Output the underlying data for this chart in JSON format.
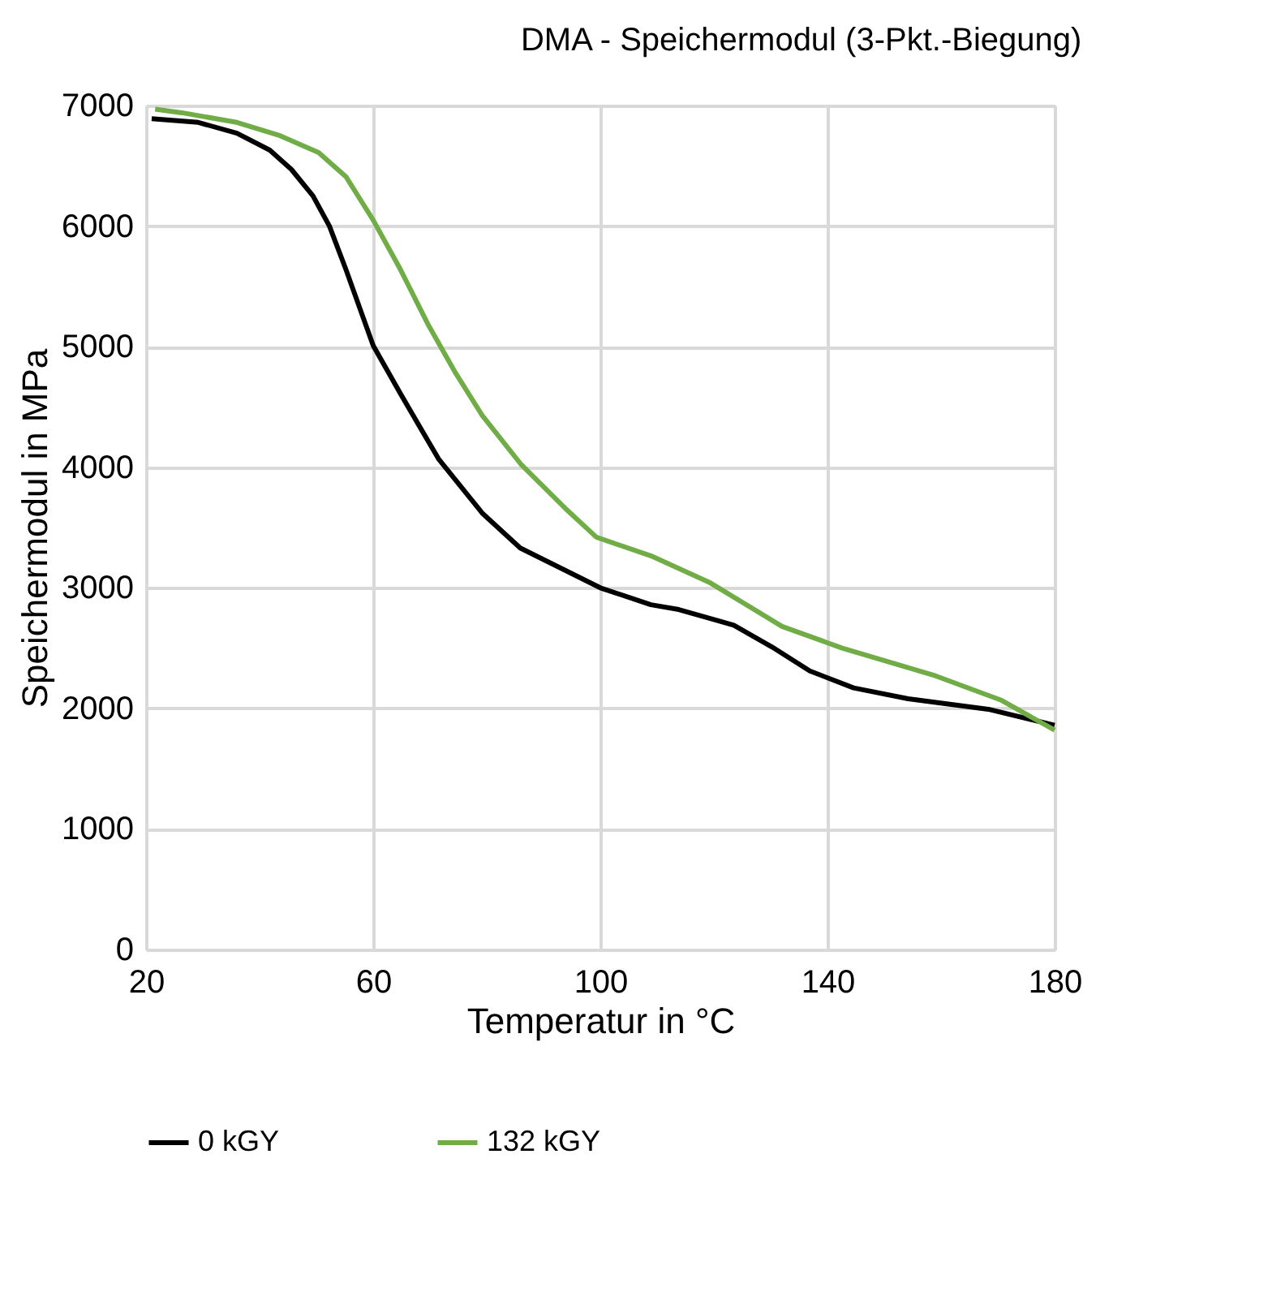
{
  "chart_data": {
    "type": "line",
    "title": "DMA - Speichermodul (3-Pkt.-Biegung)",
    "xlabel": "Temperatur in °C",
    "ylabel": "Speichermodul in MPa",
    "xlim": [
      20,
      180
    ],
    "xticks": [
      20,
      60,
      100,
      140,
      180
    ],
    "ylim": [
      0,
      7000
    ],
    "yticks": [
      0,
      1000,
      2000,
      3000,
      4000,
      5000,
      6000,
      7000
    ],
    "grid": true,
    "legend": "bottom",
    "marker": "none",
    "line_style": "solid",
    "series": [
      {
        "name": "0 kGY",
        "color": "#000000",
        "x": [
          21,
          29.2,
          36,
          41.8,
          45.6,
          49.4,
          52.3,
          55.2,
          60,
          64.8,
          71.5,
          79.2,
          85.9,
          100,
          108.9,
          113.8,
          123.5,
          130.2,
          136.9,
          144.6,
          154.2,
          168.6,
          180
        ],
        "values": [
          6890,
          6860,
          6770,
          6630,
          6470,
          6250,
          6000,
          5640,
          5010,
          4610,
          4070,
          3620,
          3330,
          3000,
          2860,
          2820,
          2690,
          2510,
          2310,
          2170,
          2080,
          1990,
          1860
        ]
      },
      {
        "name": "132 kGY",
        "color": "#70ad47",
        "x": [
          21.6,
          26.3,
          36,
          43.6,
          50.4,
          55.2,
          60,
          64.8,
          69.6,
          74.4,
          79.2,
          86.1,
          93.8,
          99.3,
          109.2,
          119.4,
          132,
          142.6,
          159,
          170.5,
          180
        ],
        "values": [
          6970,
          6940,
          6860,
          6750,
          6610,
          6410,
          6050,
          5640,
          5190,
          4790,
          4430,
          4020,
          3660,
          3420,
          3260,
          3040,
          2680,
          2500,
          2270,
          2070,
          1820
        ]
      }
    ]
  }
}
